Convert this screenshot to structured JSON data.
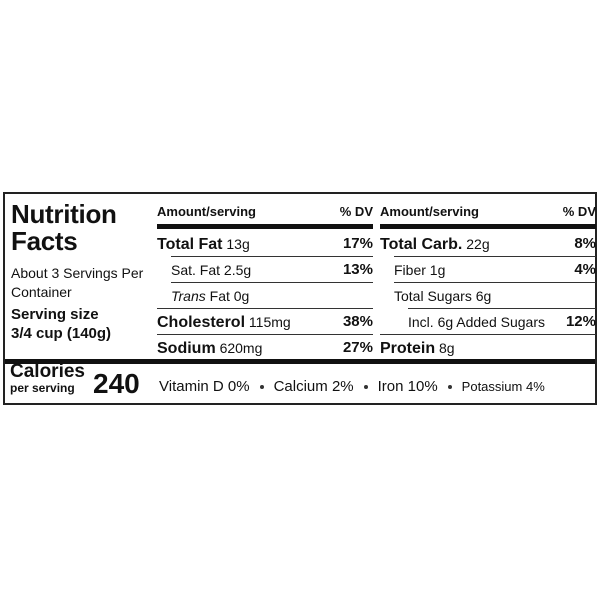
{
  "label": {
    "title": "Nutrition Facts",
    "servings": "About 3 Servings Per Container",
    "serving_size_label": "Serving size",
    "serving_size": "3/4 cup (140g)",
    "calories_label": "Calories",
    "calories_sub": "per serving",
    "calories": "240",
    "columns": [
      {
        "header_amount": "Amount/serving",
        "header_dv": "% DV",
        "rows": [
          {
            "name": "Total Fat",
            "amount": "13g",
            "dv": "17%",
            "bold": true,
            "indent": 0
          },
          {
            "name": "Sat. Fat",
            "amount": "2.5g",
            "dv": "13%",
            "bold": false,
            "indent": 1
          },
          {
            "name_italic": "Trans",
            "name": "Fat",
            "amount": "0g",
            "bold": false,
            "indent": 1
          },
          {
            "name": "Cholesterol",
            "amount": "115mg",
            "dv": "38%",
            "bold": true,
            "indent": 0
          },
          {
            "name": "Sodium",
            "amount": "620mg",
            "dv": "27%",
            "bold": true,
            "indent": 0
          }
        ]
      },
      {
        "header_amount": "Amount/serving",
        "header_dv": "% DV",
        "rows": [
          {
            "name": "Total Carb.",
            "amount": "22g",
            "dv": "8%",
            "bold": true,
            "indent": 0
          },
          {
            "name": "Fiber",
            "amount": "1g",
            "dv": "4%",
            "bold": false,
            "indent": 1
          },
          {
            "name": "Total Sugars",
            "amount": "6g",
            "bold": false,
            "indent": 1
          },
          {
            "name": "Incl. 6g Added Sugars",
            "dv": "12%",
            "bold": false,
            "indent": 2
          },
          {
            "name": "Protein",
            "amount": "8g",
            "bold": true,
            "indent": 0
          }
        ]
      }
    ],
    "vitamins": [
      "Vitamin D 0%",
      "Calcium 2%",
      "Iron 10%",
      "Potassium 4%"
    ]
  }
}
